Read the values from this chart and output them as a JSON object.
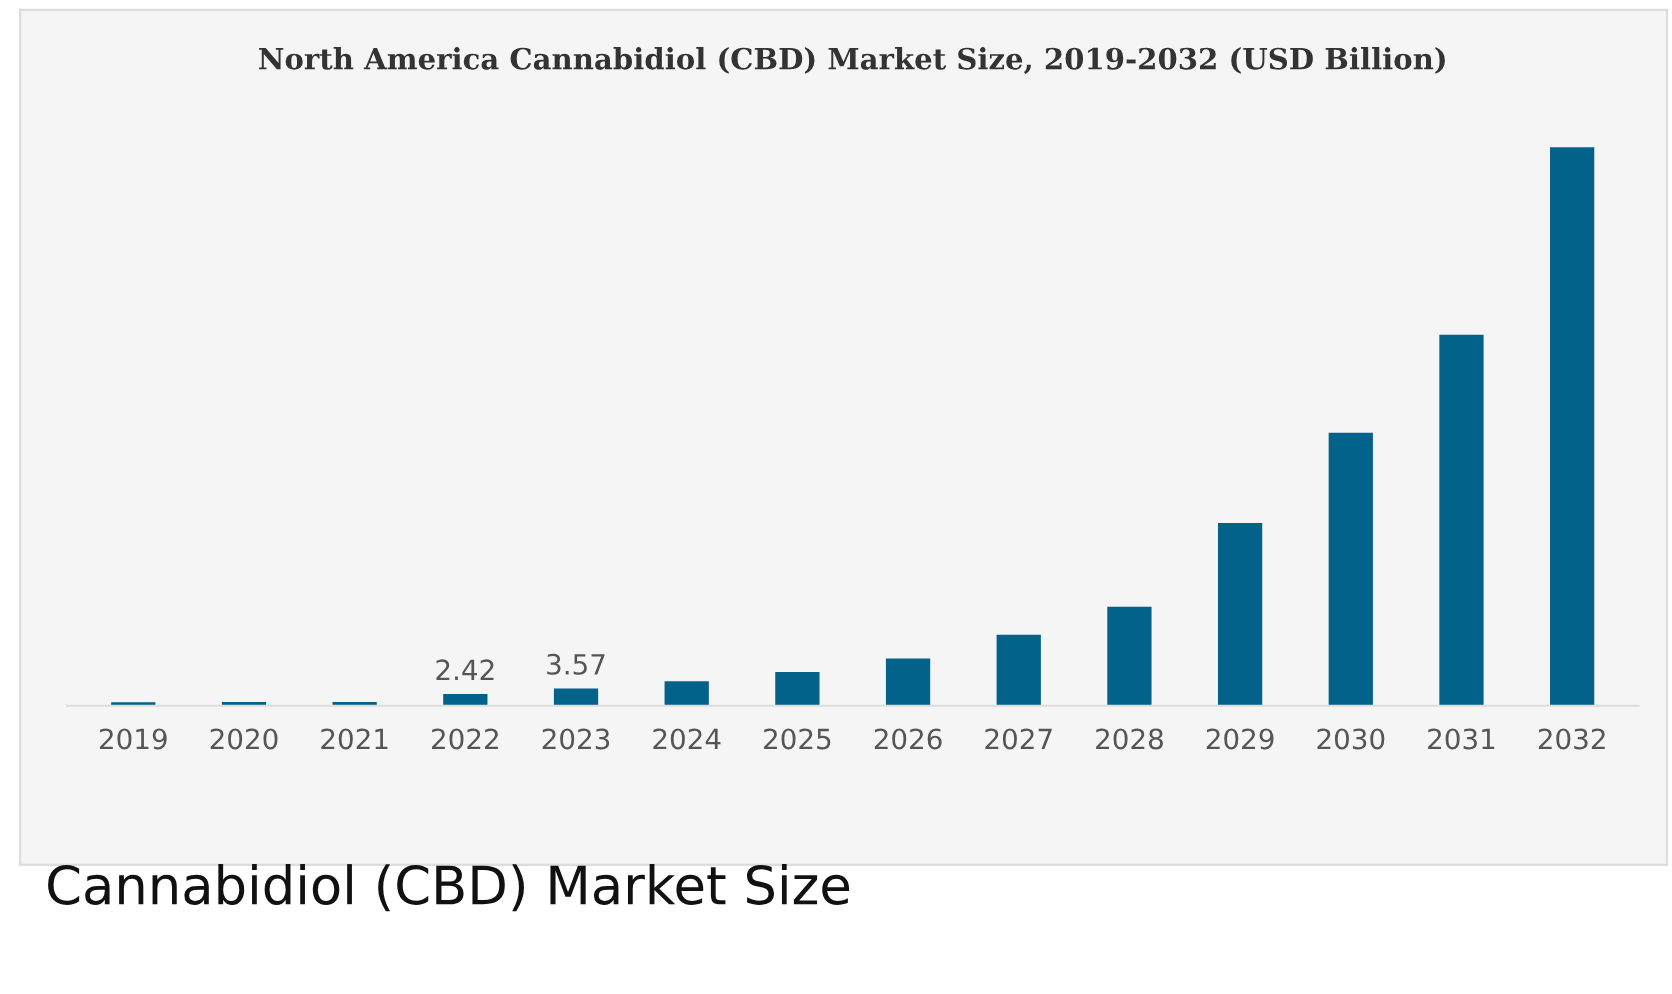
{
  "chart_data": {
    "type": "bar",
    "title": "North America Cannabidiol (CBD) Market Size, 2019-2032 (USD Billion)",
    "categories": [
      "2019",
      "2020",
      "2021",
      "2022",
      "2023",
      "2024",
      "2025",
      "2026",
      "2027",
      "2028",
      "2029",
      "2030",
      "2031",
      "2032"
    ],
    "values": [
      0.7,
      0.8,
      0.8,
      2.42,
      3.57,
      5.1,
      7.0,
      9.8,
      14.7,
      20.5,
      37.9,
      56.6,
      76.9,
      115.8
    ],
    "value_labels": [
      null,
      null,
      null,
      "2.42",
      "3.57",
      null,
      null,
      null,
      null,
      null,
      null,
      null,
      null,
      null
    ],
    "color": "#03628a",
    "annotations": [
      "Cannabidiol (CBD) Market Size"
    ]
  }
}
